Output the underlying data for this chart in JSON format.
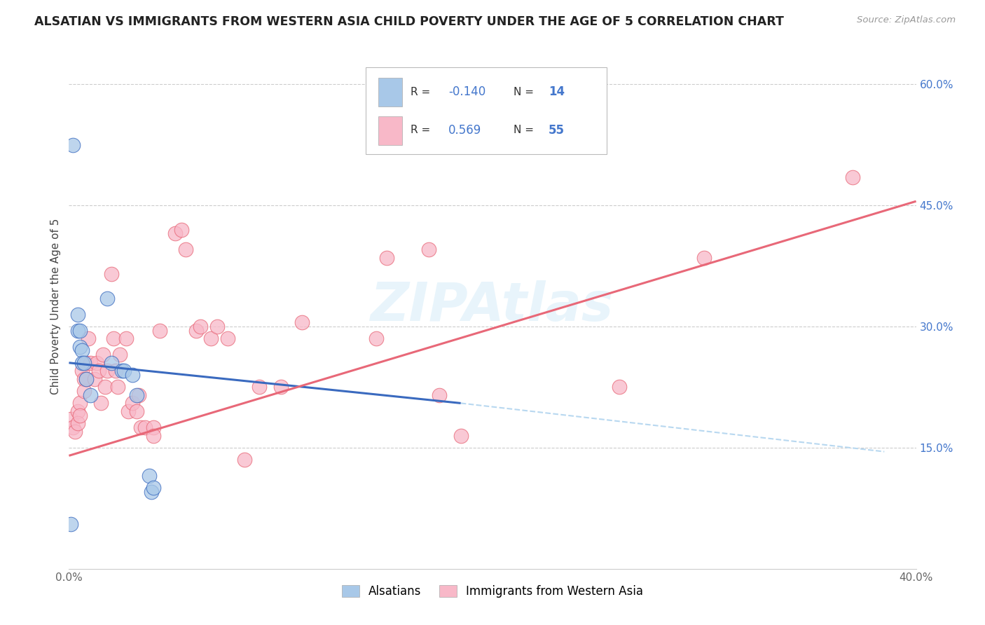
{
  "title": "ALSATIAN VS IMMIGRANTS FROM WESTERN ASIA CHILD POVERTY UNDER THE AGE OF 5 CORRELATION CHART",
  "source": "Source: ZipAtlas.com",
  "ylabel": "Child Poverty Under the Age of 5",
  "x_min": 0.0,
  "x_max": 0.4,
  "y_min": 0.0,
  "y_max": 0.65,
  "x_ticks": [
    0.0,
    0.05,
    0.1,
    0.15,
    0.2,
    0.25,
    0.3,
    0.35,
    0.4
  ],
  "y_ticks_right": [
    0.15,
    0.3,
    0.45,
    0.6
  ],
  "y_tick_labels_right": [
    "15.0%",
    "30.0%",
    "45.0%",
    "60.0%"
  ],
  "color_blue": "#a8c8e8",
  "color_pink": "#f8b8c8",
  "line_blue": "#3a6abf",
  "line_pink": "#e86878",
  "line_dashed_color": "#b8d8f0",
  "watermark": "ZIPAtlas",
  "alsatian_points": [
    [
      0.002,
      0.525
    ],
    [
      0.004,
      0.315
    ],
    [
      0.004,
      0.295
    ],
    [
      0.005,
      0.295
    ],
    [
      0.005,
      0.275
    ],
    [
      0.006,
      0.27
    ],
    [
      0.006,
      0.255
    ],
    [
      0.007,
      0.255
    ],
    [
      0.008,
      0.235
    ],
    [
      0.01,
      0.215
    ],
    [
      0.018,
      0.335
    ],
    [
      0.02,
      0.255
    ],
    [
      0.025,
      0.245
    ],
    [
      0.026,
      0.245
    ],
    [
      0.03,
      0.24
    ],
    [
      0.032,
      0.215
    ],
    [
      0.038,
      0.115
    ],
    [
      0.039,
      0.095
    ],
    [
      0.04,
      0.1
    ],
    [
      0.001,
      0.055
    ]
  ],
  "western_asia_points": [
    [
      0.001,
      0.185
    ],
    [
      0.002,
      0.175
    ],
    [
      0.003,
      0.17
    ],
    [
      0.004,
      0.195
    ],
    [
      0.004,
      0.18
    ],
    [
      0.005,
      0.205
    ],
    [
      0.005,
      0.19
    ],
    [
      0.006,
      0.245
    ],
    [
      0.007,
      0.235
    ],
    [
      0.007,
      0.22
    ],
    [
      0.008,
      0.255
    ],
    [
      0.008,
      0.235
    ],
    [
      0.009,
      0.285
    ],
    [
      0.01,
      0.255
    ],
    [
      0.012,
      0.235
    ],
    [
      0.013,
      0.255
    ],
    [
      0.014,
      0.245
    ],
    [
      0.015,
      0.205
    ],
    [
      0.016,
      0.265
    ],
    [
      0.017,
      0.225
    ],
    [
      0.018,
      0.245
    ],
    [
      0.02,
      0.365
    ],
    [
      0.021,
      0.285
    ],
    [
      0.022,
      0.245
    ],
    [
      0.023,
      0.225
    ],
    [
      0.024,
      0.265
    ],
    [
      0.027,
      0.285
    ],
    [
      0.028,
      0.195
    ],
    [
      0.03,
      0.205
    ],
    [
      0.032,
      0.195
    ],
    [
      0.033,
      0.215
    ],
    [
      0.034,
      0.175
    ],
    [
      0.036,
      0.175
    ],
    [
      0.04,
      0.175
    ],
    [
      0.04,
      0.165
    ],
    [
      0.043,
      0.295
    ],
    [
      0.05,
      0.415
    ],
    [
      0.053,
      0.42
    ],
    [
      0.055,
      0.395
    ],
    [
      0.06,
      0.295
    ],
    [
      0.062,
      0.3
    ],
    [
      0.067,
      0.285
    ],
    [
      0.07,
      0.3
    ],
    [
      0.075,
      0.285
    ],
    [
      0.083,
      0.135
    ],
    [
      0.09,
      0.225
    ],
    [
      0.1,
      0.225
    ],
    [
      0.11,
      0.305
    ],
    [
      0.145,
      0.285
    ],
    [
      0.15,
      0.385
    ],
    [
      0.17,
      0.395
    ],
    [
      0.175,
      0.215
    ],
    [
      0.185,
      0.165
    ],
    [
      0.26,
      0.225
    ],
    [
      0.3,
      0.385
    ],
    [
      0.37,
      0.485
    ]
  ],
  "blue_line_x": [
    0.0,
    0.185
  ],
  "blue_line_y": [
    0.255,
    0.205
  ],
  "dashed_line_x": [
    0.185,
    0.385
  ],
  "dashed_line_y": [
    0.205,
    0.145
  ],
  "pink_line_x": [
    0.0,
    0.4
  ],
  "pink_line_y": [
    0.14,
    0.455
  ]
}
